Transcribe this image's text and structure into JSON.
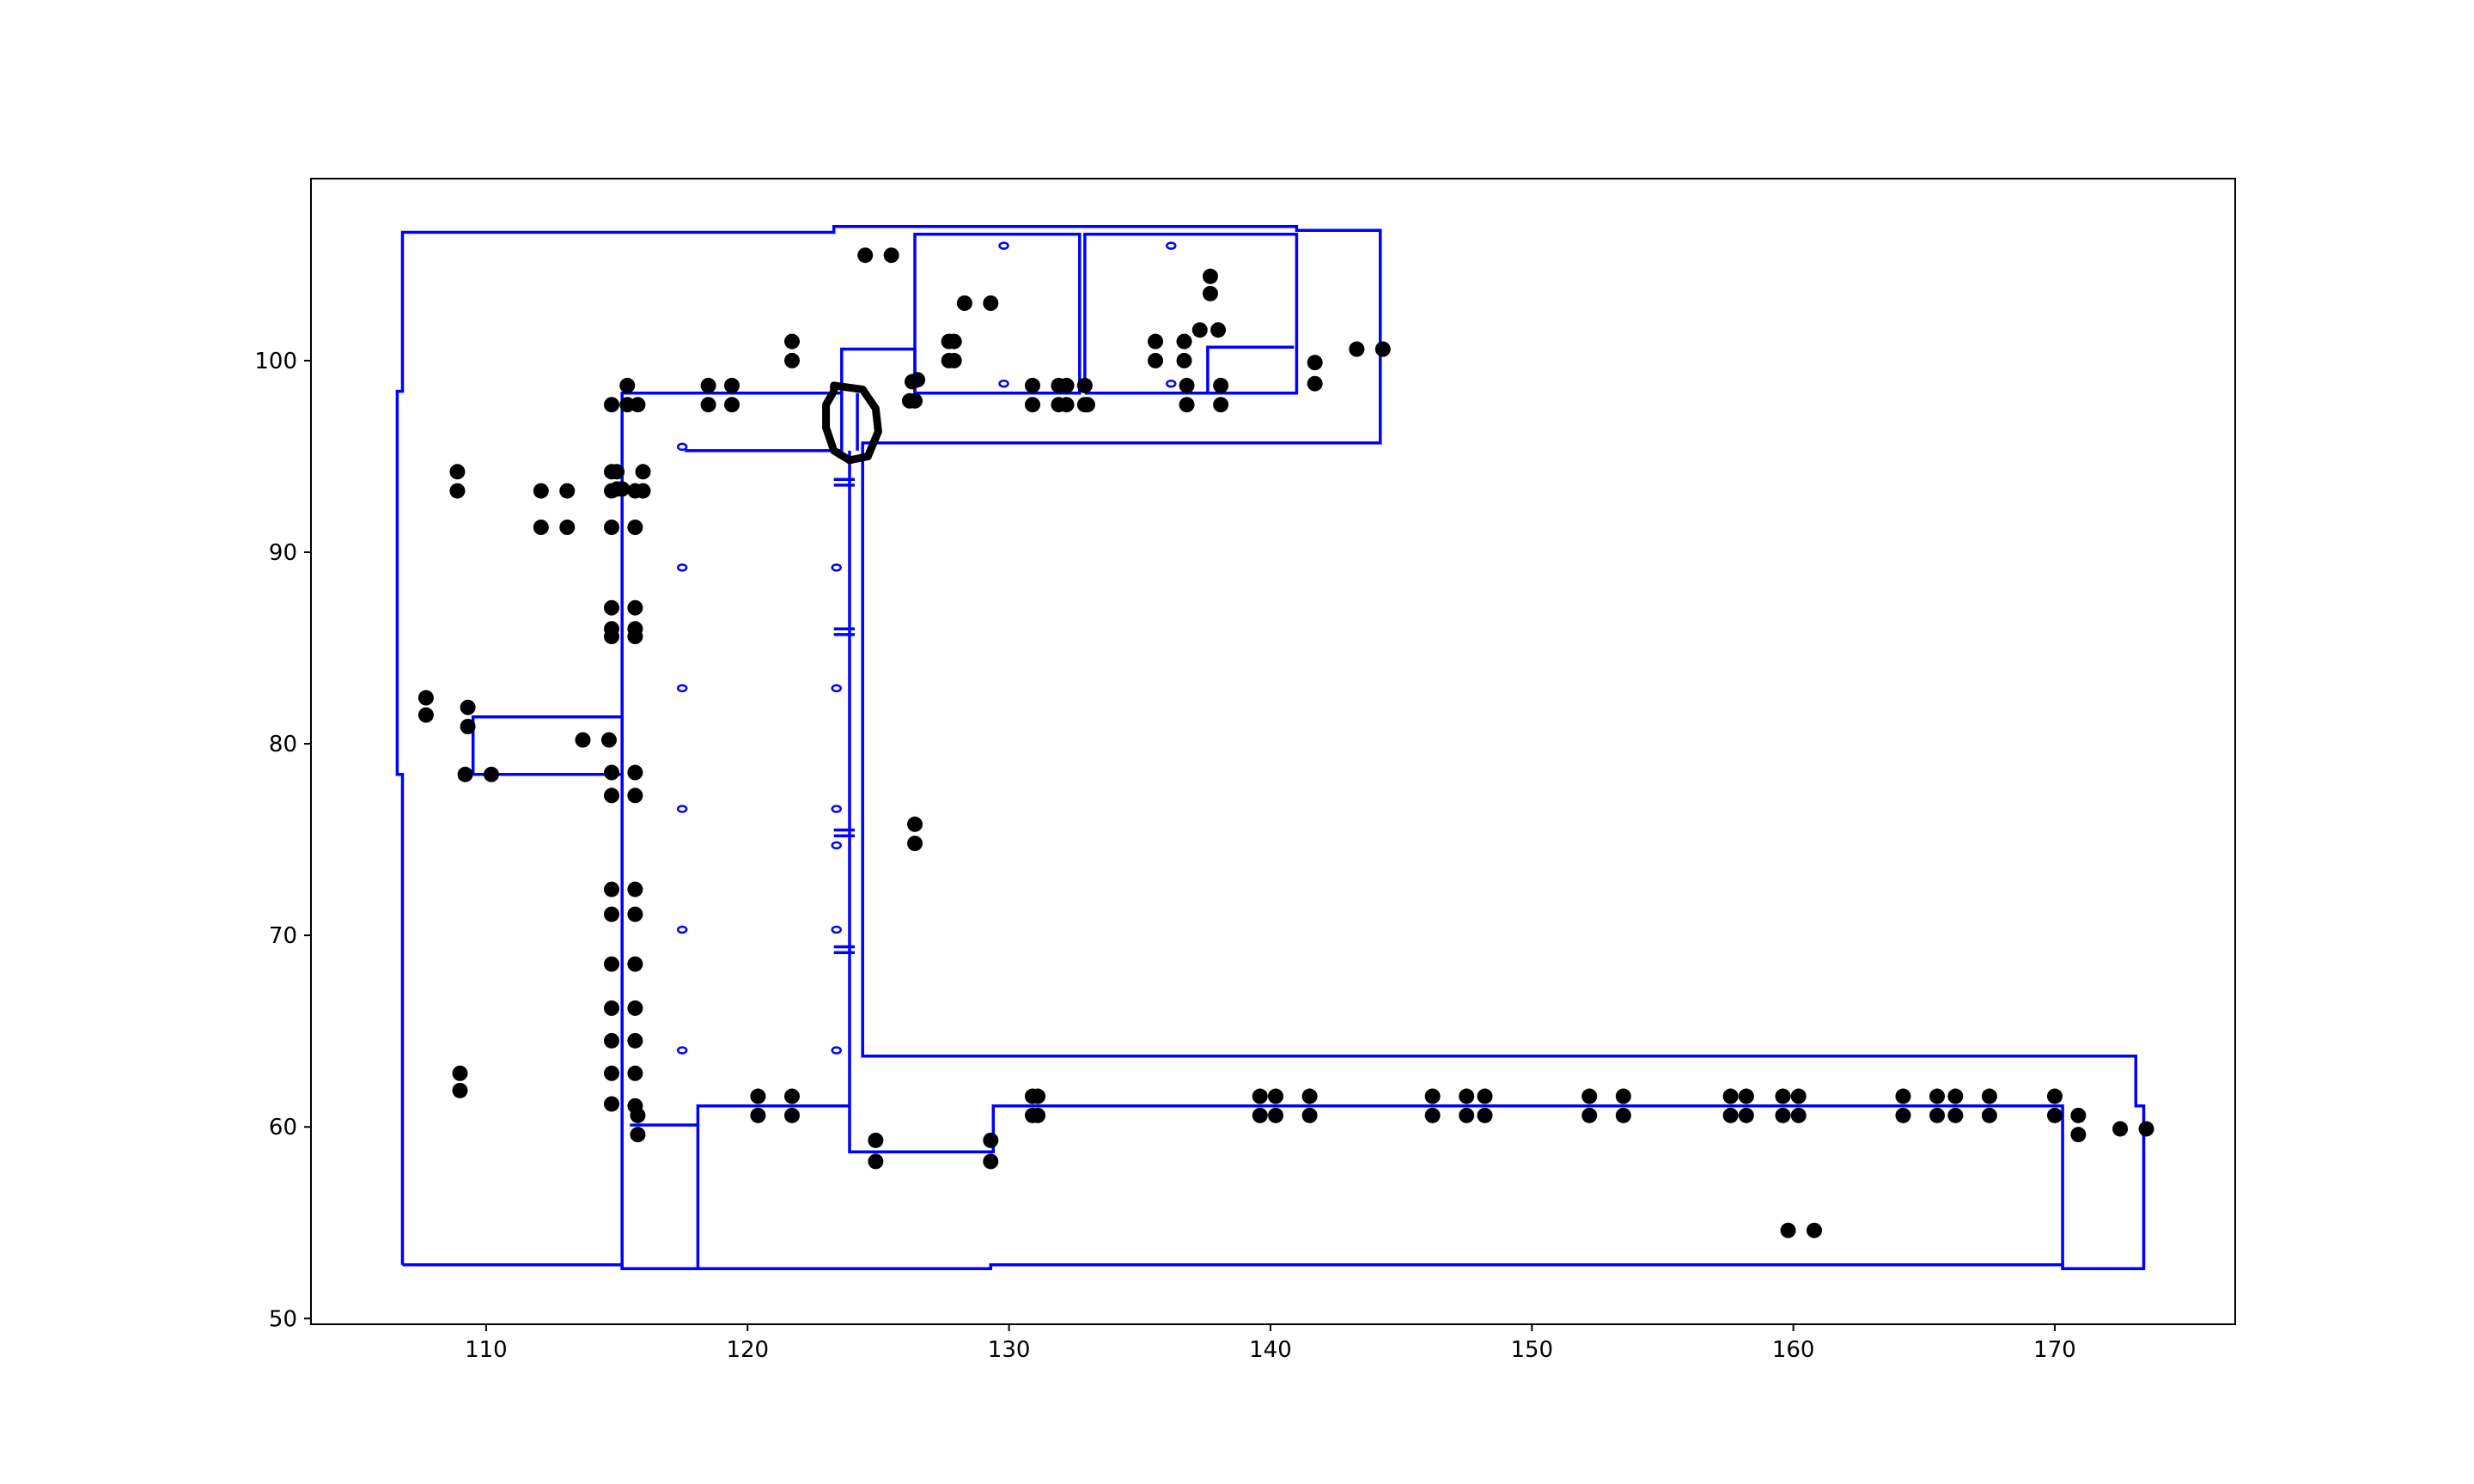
{
  "chart_data": {
    "type": "scatter",
    "title": "",
    "xlabel": "",
    "ylabel": "",
    "xlim": [
      103.3,
      176.9
    ],
    "ylim": [
      49.7,
      109.5
    ],
    "grid": false,
    "legend": "none",
    "x_ticks": [
      "110",
      "120",
      "130",
      "140",
      "150",
      "160",
      "170"
    ],
    "x_tick_values": [
      110,
      120,
      130,
      140,
      150,
      160,
      170
    ],
    "y_ticks": [
      "50",
      "60",
      "70",
      "80",
      "90",
      "100"
    ],
    "y_tick_values": [
      50,
      60,
      70,
      80,
      90,
      100
    ],
    "colors": {
      "outline": "#0000ff",
      "points": "#000000",
      "annotation": "#000000",
      "frame": "#000000"
    },
    "series": [
      {
        "kind": "points",
        "color": "#000000",
        "points": [
          [
            124.5,
            105.5
          ],
          [
            125.5,
            105.5
          ],
          [
            128.3,
            103
          ],
          [
            129.3,
            103
          ],
          [
            127.7,
            101
          ],
          [
            127.9,
            101
          ],
          [
            127.7,
            100
          ],
          [
            127.9,
            100
          ],
          [
            121.7,
            101
          ],
          [
            121.7,
            100
          ],
          [
            126.3,
            98.9
          ],
          [
            126.5,
            99
          ],
          [
            126.2,
            97.9
          ],
          [
            126.4,
            97.9
          ],
          [
            118.5,
            98.7
          ],
          [
            119.4,
            98.7
          ],
          [
            118.5,
            97.7
          ],
          [
            119.4,
            97.7
          ],
          [
            115.4,
            98.7
          ],
          [
            114.8,
            97.7
          ],
          [
            115.4,
            97.7
          ],
          [
            115.8,
            97.7
          ],
          [
            130.9,
            98.7
          ],
          [
            131.9,
            98.7
          ],
          [
            132.2,
            98.7
          ],
          [
            132.9,
            98.7
          ],
          [
            130.9,
            97.7
          ],
          [
            131.9,
            97.7
          ],
          [
            132.2,
            97.7
          ],
          [
            132.9,
            97.7
          ],
          [
            133,
            97.7
          ],
          [
            135.6,
            101
          ],
          [
            136.7,
            101
          ],
          [
            135.6,
            100
          ],
          [
            136.7,
            100
          ],
          [
            137.3,
            101.6
          ],
          [
            138,
            101.6
          ],
          [
            137.7,
            104.4
          ],
          [
            137.7,
            103.5
          ],
          [
            136.8,
            98.7
          ],
          [
            138.1,
            98.7
          ],
          [
            136.8,
            97.7
          ],
          [
            138.1,
            97.7
          ],
          [
            141.7,
            99.9
          ],
          [
            141.7,
            98.8
          ],
          [
            143.3,
            100.6
          ],
          [
            144.3,
            100.6
          ],
          [
            108.9,
            94.2
          ],
          [
            108.9,
            93.2
          ],
          [
            112.1,
            93.2
          ],
          [
            113.1,
            93.2
          ],
          [
            112.1,
            91.3
          ],
          [
            113.1,
            91.3
          ],
          [
            114.8,
            94.2
          ],
          [
            115,
            94.2
          ],
          [
            114.8,
            93.2
          ],
          [
            115,
            93.3
          ],
          [
            115.2,
            93.3
          ],
          [
            115.7,
            93.2
          ],
          [
            116,
            93.2
          ],
          [
            116,
            94.2
          ],
          [
            114.8,
            91.3
          ],
          [
            115.7,
            91.3
          ],
          [
            114.8,
            87.1
          ],
          [
            115.7,
            87.1
          ],
          [
            114.8,
            86
          ],
          [
            115.7,
            86
          ],
          [
            114.8,
            85.6
          ],
          [
            115.7,
            85.6
          ],
          [
            107.7,
            82.4
          ],
          [
            107.7,
            81.5
          ],
          [
            109.3,
            81.9
          ],
          [
            109.3,
            80.9
          ],
          [
            109.2,
            78.4
          ],
          [
            110.2,
            78.4
          ],
          [
            113.7,
            80.2
          ],
          [
            114.7,
            80.2
          ],
          [
            114.8,
            78.5
          ],
          [
            115.7,
            78.5
          ],
          [
            114.8,
            77.3
          ],
          [
            115.7,
            77.3
          ],
          [
            114.8,
            72.4
          ],
          [
            115.7,
            72.4
          ],
          [
            114.8,
            71.1
          ],
          [
            115.7,
            71.1
          ],
          [
            114.8,
            68.5
          ],
          [
            115.7,
            68.5
          ],
          [
            114.8,
            66.2
          ],
          [
            115.7,
            66.2
          ],
          [
            114.8,
            64.5
          ],
          [
            115.7,
            64.5
          ],
          [
            114.8,
            62.8
          ],
          [
            115.7,
            62.8
          ],
          [
            114.8,
            61.2
          ],
          [
            115.7,
            61.1
          ],
          [
            115.8,
            60.6
          ],
          [
            115.8,
            59.6
          ],
          [
            109,
            62.8
          ],
          [
            109,
            61.9
          ],
          [
            126.4,
            75.8
          ],
          [
            126.4,
            74.8
          ],
          [
            120.4,
            61.6
          ],
          [
            121.7,
            61.6
          ],
          [
            120.4,
            60.6
          ],
          [
            121.7,
            60.6
          ],
          [
            124.9,
            59.3
          ],
          [
            124.9,
            58.2
          ],
          [
            129.3,
            59.3
          ],
          [
            129.3,
            58.2
          ],
          [
            130.9,
            61.6
          ],
          [
            131.1,
            61.6
          ],
          [
            130.9,
            60.6
          ],
          [
            131.1,
            60.6
          ],
          [
            139.6,
            61.6
          ],
          [
            140.2,
            61.6
          ],
          [
            139.6,
            60.6
          ],
          [
            140.2,
            60.6
          ],
          [
            141.5,
            61.6
          ],
          [
            141.5,
            60.6
          ],
          [
            146.2,
            61.6
          ],
          [
            147.5,
            61.6
          ],
          [
            148.2,
            61.6
          ],
          [
            146.2,
            60.6
          ],
          [
            147.5,
            60.6
          ],
          [
            148.2,
            60.6
          ],
          [
            152.2,
            61.6
          ],
          [
            153.5,
            61.6
          ],
          [
            152.2,
            60.6
          ],
          [
            153.5,
            60.6
          ],
          [
            157.6,
            61.6
          ],
          [
            158.2,
            61.6
          ],
          [
            157.6,
            60.6
          ],
          [
            158.2,
            60.6
          ],
          [
            159.6,
            61.6
          ],
          [
            160.2,
            61.6
          ],
          [
            159.6,
            60.6
          ],
          [
            160.2,
            60.6
          ],
          [
            164.2,
            61.6
          ],
          [
            165.5,
            61.6
          ],
          [
            166.2,
            61.6
          ],
          [
            164.2,
            60.6
          ],
          [
            165.5,
            60.6
          ],
          [
            166.2,
            60.6
          ],
          [
            167.5,
            61.6
          ],
          [
            167.5,
            60.6
          ],
          [
            170,
            61.6
          ],
          [
            170,
            60.6
          ],
          [
            170.9,
            60.6
          ],
          [
            170.9,
            59.6
          ],
          [
            172.5,
            59.9
          ],
          [
            173.5,
            59.9
          ],
          [
            159.8,
            54.6
          ],
          [
            160.8,
            54.6
          ]
        ]
      },
      {
        "kind": "outlines",
        "color": "#0000ff",
        "polylines": [
          [
            [
              106.8,
              52.8
            ],
            [
              106.8,
              78.4
            ],
            [
              106.6,
              78.4
            ],
            [
              106.6,
              98.4
            ],
            [
              106.8,
              98.4
            ],
            [
              106.8,
              106.7
            ],
            [
              123.3,
              106.7
            ],
            [
              123.3,
              107
            ],
            [
              141,
              107
            ],
            [
              141,
              106.8
            ],
            [
              144.2,
              106.8
            ],
            [
              144.2,
              95.7
            ],
            [
              124.4,
              95.7
            ],
            [
              124.4,
              63.7
            ],
            [
              173.1,
              63.7
            ],
            [
              173.1,
              61.1
            ],
            [
              173.4,
              61.1
            ],
            [
              173.4,
              52.6
            ],
            [
              170.3,
              52.6
            ],
            [
              170.3,
              52.8
            ],
            [
              129.3,
              52.8
            ],
            [
              129.3,
              52.6
            ],
            [
              118.1,
              52.6
            ],
            [
              118.1,
              52.6
            ],
            [
              115.2,
              52.6
            ],
            [
              115.2,
              52.8
            ],
            [
              106.8,
              52.8
            ]
          ],
          [
            [
              109.5,
              78.4
            ],
            [
              109.5,
              81.4
            ],
            [
              115.2,
              81.4
            ],
            [
              115.2,
              78.4
            ],
            [
              109.5,
              78.4
            ]
          ],
          [
            [
              115.2,
              52.6
            ],
            [
              115.2,
              98.3
            ],
            [
              123.6,
              98.3
            ],
            [
              123.6,
              95.3
            ],
            [
              117.6,
              95.3
            ]
          ],
          [
            [
              123.9,
              95.3
            ],
            [
              123.9,
              60.1
            ],
            [
              123.9,
              58.7
            ],
            [
              129.4,
              58.7
            ],
            [
              129.4,
              61.1
            ],
            [
              170.3,
              61.1
            ],
            [
              170.3,
              52.6
            ]
          ],
          [
            [
              118.1,
              52.6
            ],
            [
              118.1,
              61.1
            ],
            [
              123.9,
              61.1
            ]
          ],
          [
            [
              115.5,
              60.1
            ],
            [
              118.1,
              60.1
            ]
          ],
          [
            [
              126.4,
              98.3
            ],
            [
              126.4,
              106.6
            ],
            [
              132.7,
              106.6
            ],
            [
              132.7,
              98.3
            ],
            [
              126.4,
              98.3
            ]
          ],
          [
            [
              132.9,
              98.3
            ],
            [
              132.9,
              106.6
            ],
            [
              141,
              106.6
            ],
            [
              141,
              98.3
            ],
            [
              132.9,
              98.3
            ]
          ],
          [
            [
              123.6,
              98.3
            ],
            [
              123.6,
              100.6
            ],
            [
              126.4,
              100.6
            ],
            [
              126.4,
              98.3
            ]
          ],
          [
            [
              137.6,
              98.3
            ],
            [
              137.6,
              100.7
            ],
            [
              140.9,
              100.7
            ]
          ],
          [
            [
              124.2,
              95.3
            ],
            [
              124.2,
              98.3
            ]
          ],
          [
            [
              123.3,
              93.8
            ],
            [
              124.1,
              93.8
            ]
          ],
          [
            [
              123.3,
              93.5
            ],
            [
              124.1,
              93.5
            ]
          ],
          [
            [
              123.3,
              86
            ],
            [
              124.1,
              86
            ]
          ],
          [
            [
              123.3,
              85.7
            ],
            [
              124.1,
              85.7
            ]
          ],
          [
            [
              123.3,
              75.5
            ],
            [
              124.1,
              75.5
            ]
          ],
          [
            [
              123.3,
              75.2
            ],
            [
              124.1,
              75.2
            ]
          ],
          [
            [
              123.3,
              69.4
            ],
            [
              124.1,
              69.4
            ]
          ],
          [
            [
              123.3,
              69.1
            ],
            [
              124.1,
              69.1
            ]
          ]
        ],
        "rings": [
          [
            117.5,
            95.5
          ],
          [
            117.5,
            89.2
          ],
          [
            117.5,
            82.9
          ],
          [
            117.5,
            76.6
          ],
          [
            117.5,
            70.3
          ],
          [
            117.5,
            64
          ],
          [
            123.4,
            89.2
          ],
          [
            123.4,
            82.9
          ],
          [
            123.4,
            76.6
          ],
          [
            123.4,
            74.7
          ],
          [
            123.4,
            70.3
          ],
          [
            123.4,
            64
          ],
          [
            129.8,
            106
          ],
          [
            136.2,
            106
          ],
          [
            129.8,
            98.8
          ],
          [
            136.2,
            98.8
          ]
        ]
      },
      {
        "kind": "annotation",
        "color": "#000000",
        "path": [
          [
            123.3,
            98.7
          ],
          [
            124.4,
            98.5
          ],
          [
            124.9,
            97.5
          ],
          [
            125,
            96.3
          ],
          [
            124.6,
            95
          ],
          [
            123.9,
            94.8
          ],
          [
            123.3,
            95.3
          ],
          [
            123,
            96.5
          ],
          [
            123,
            97.7
          ],
          [
            123.3,
            98.4
          ]
        ]
      }
    ]
  }
}
